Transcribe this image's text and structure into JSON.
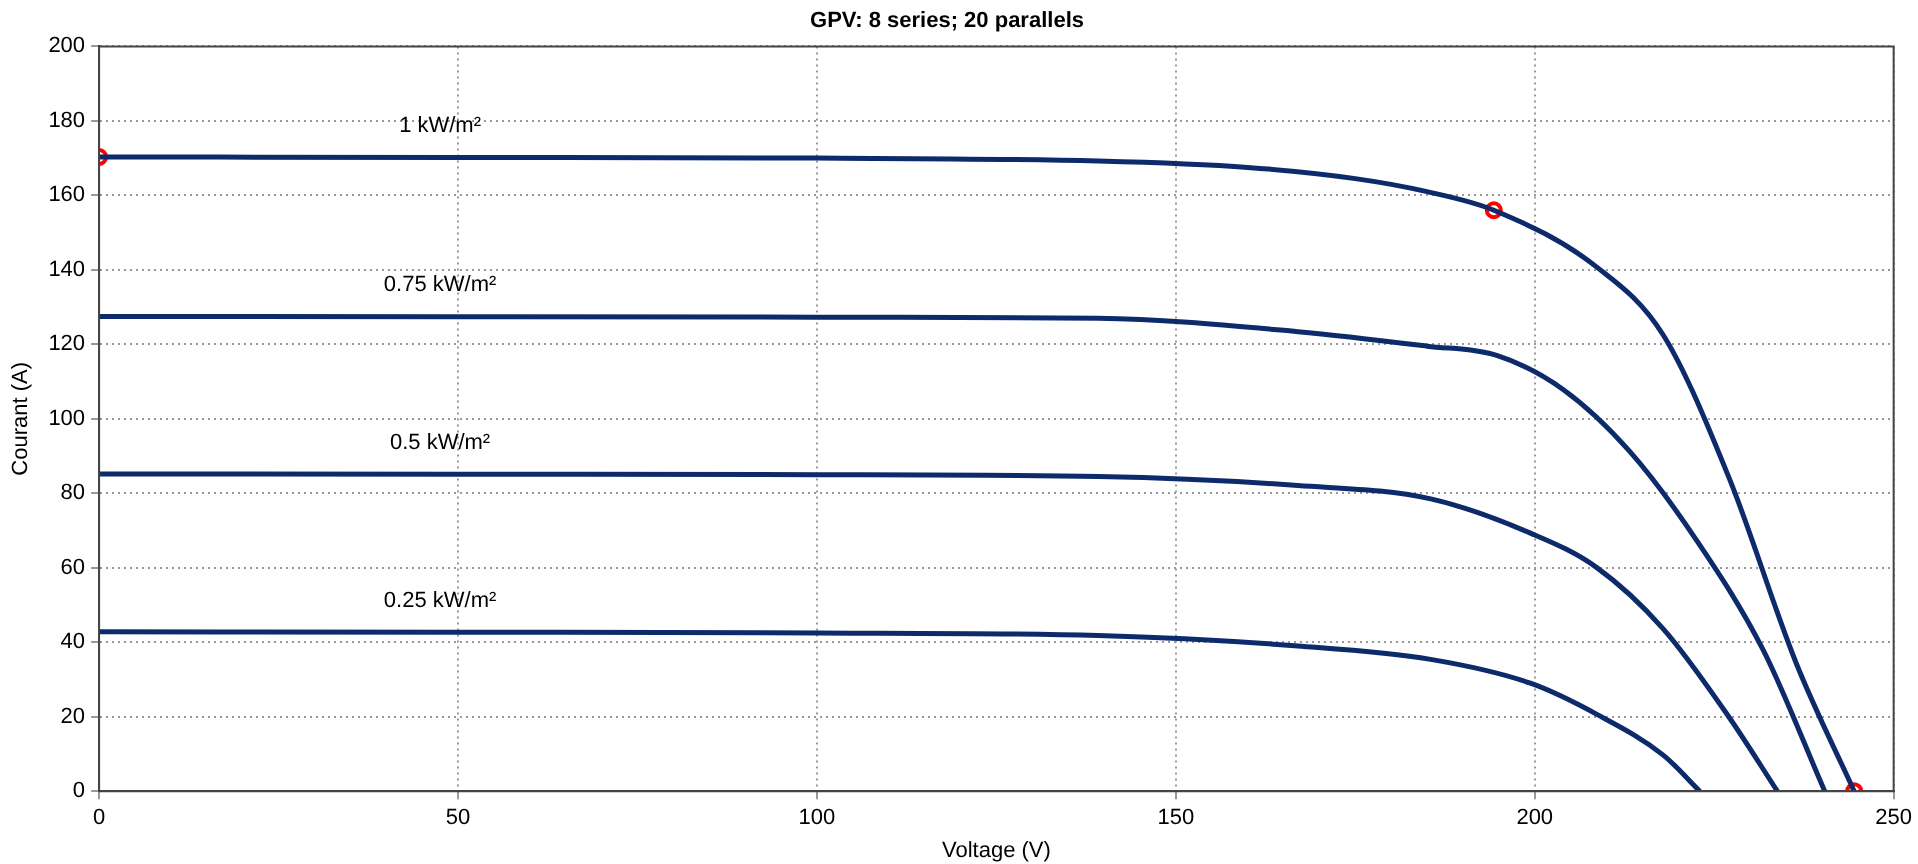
{
  "chart_data": {
    "type": "line",
    "title": "GPV: 8 series; 20 parallels",
    "xlabel": "Voltage (V)",
    "ylabel": "Courant (A)",
    "xlim": [
      0,
      250
    ],
    "xticks": [
      0,
      50,
      100,
      150,
      200,
      250
    ],
    "ylim": [
      0,
      200
    ],
    "yticks": [
      0,
      20,
      40,
      60,
      80,
      100,
      120,
      140,
      160,
      180,
      200
    ],
    "grid": true,
    "line_style": "solid",
    "marker": "none",
    "legend": false,
    "series": [
      {
        "name": "1 kW/m²",
        "color": "#0d2a6b",
        "x": [
          0,
          50,
          100,
          139.2,
          160,
          175,
          185,
          194.3,
          208.6,
          217.9,
          227.1,
          236.4,
          244.5
        ],
        "values": [
          170.3,
          170.2,
          170,
          169.2,
          167.5,
          164.5,
          161,
          156,
          140.8,
          122.5,
          84,
          34.5,
          0
        ]
      },
      {
        "name": "0.75 kW/m²",
        "color": "#0d2a6b",
        "x": [
          0,
          50,
          100,
          139.2,
          167,
          185,
          194.7,
          204,
          213.2,
          222.5,
          231.8,
          240.4
        ],
        "values": [
          127.5,
          127.4,
          127.3,
          127,
          123.4,
          119.5,
          117,
          107.8,
          91.3,
          67.5,
          38,
          0
        ]
      },
      {
        "name": "0.5 kW/m²",
        "color": "#0d2a6b",
        "x": [
          0,
          50,
          100,
          139.2,
          167,
          185.5,
          199.4,
          208.6,
          217.9,
          227.1,
          233.8
        ],
        "values": [
          85.2,
          85.1,
          85,
          84.5,
          82.1,
          78.5,
          69.3,
          60.1,
          43.6,
          19.8,
          0
        ]
      },
      {
        "name": "0.25 kW/m²",
        "color": "#0d2a6b",
        "x": [
          0,
          50,
          100,
          139.2,
          167,
          185.5,
          199.4,
          208.6,
          217.9,
          223
        ],
        "values": [
          42.8,
          42.7,
          42.5,
          41.8,
          39,
          35.4,
          29,
          20.7,
          9.7,
          0
        ]
      },
      {
        "type": "scatter",
        "marker": "circle",
        "color": "#ff0000",
        "x": [
          0,
          194.3,
          244.5
        ],
        "values": [
          170.3,
          156,
          0
        ]
      }
    ]
  }
}
